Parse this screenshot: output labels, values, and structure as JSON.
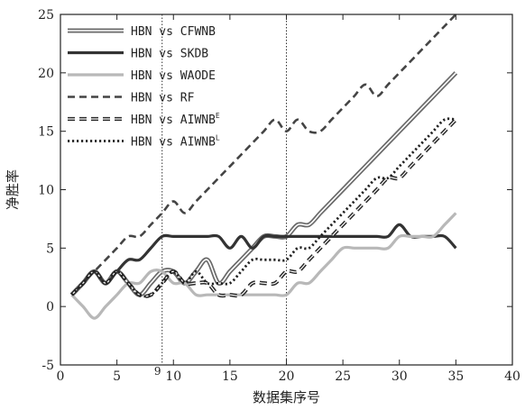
{
  "chart_data": {
    "type": "line",
    "xlabel": "数据集序号",
    "ylabel": "净胜率",
    "xlim": [
      0,
      40
    ],
    "ylim": [
      -5,
      25
    ],
    "xticks": [
      0,
      5,
      10,
      15,
      20,
      25,
      30,
      35,
      40
    ],
    "yticks": [
      -5,
      0,
      5,
      10,
      15,
      20,
      25
    ],
    "grid": false,
    "legend_position": "top-left",
    "vlines": [
      {
        "x": 9,
        "label": "9"
      },
      {
        "x": 20,
        "label": ""
      }
    ],
    "series": [
      {
        "name": "HBN vs CFWNB",
        "style": "double-solid",
        "color": "#888888",
        "x": [
          1,
          2,
          3,
          4,
          5,
          6,
          7,
          8,
          9,
          10,
          11,
          12,
          13,
          14,
          15,
          16,
          17,
          18,
          19,
          20,
          21,
          22,
          23,
          24,
          25,
          26,
          27,
          28,
          29,
          30,
          31,
          32,
          33,
          34,
          35
        ],
        "y": [
          1,
          2,
          3,
          2,
          3,
          2,
          1,
          2,
          3,
          3,
          2,
          3,
          4,
          2,
          3,
          4,
          5,
          6,
          6,
          6,
          7,
          7,
          8,
          9,
          10,
          11,
          12,
          13,
          14,
          15,
          16,
          17,
          18,
          19,
          20
        ]
      },
      {
        "name": "HBN vs SKDB",
        "style": "solid",
        "color": "#333333",
        "x": [
          1,
          2,
          3,
          4,
          5,
          6,
          7,
          8,
          9,
          10,
          11,
          12,
          13,
          14,
          15,
          16,
          17,
          18,
          19,
          20,
          21,
          22,
          23,
          24,
          25,
          26,
          27,
          28,
          29,
          30,
          31,
          32,
          33,
          34,
          35
        ],
        "y": [
          1,
          2,
          3,
          2,
          3,
          4,
          4,
          5,
          6,
          6,
          6,
          6,
          6,
          6,
          5,
          6,
          5,
          6,
          6,
          6,
          6,
          6,
          6,
          6,
          6,
          6,
          6,
          6,
          6,
          7,
          6,
          6,
          6,
          6,
          5
        ]
      },
      {
        "name": "HBN vs WAODE",
        "style": "solid",
        "color": "#b8b8b8",
        "x": [
          1,
          2,
          3,
          4,
          5,
          6,
          7,
          8,
          9,
          10,
          11,
          12,
          13,
          14,
          15,
          16,
          17,
          18,
          19,
          20,
          21,
          22,
          23,
          24,
          25,
          26,
          27,
          28,
          29,
          30,
          31,
          32,
          33,
          34,
          35
        ],
        "y": [
          1,
          0,
          -1,
          0,
          1,
          2,
          2,
          3,
          3,
          2,
          2,
          1,
          1,
          1,
          1,
          1,
          1,
          1,
          1,
          1,
          2,
          2,
          3,
          4,
          5,
          5,
          5,
          5,
          5,
          6,
          6,
          6,
          6,
          7,
          8
        ]
      },
      {
        "name": "HBN vs RF",
        "style": "dashed",
        "color": "#444444",
        "x": [
          1,
          2,
          3,
          4,
          5,
          6,
          7,
          8,
          9,
          10,
          11,
          12,
          13,
          14,
          15,
          16,
          17,
          18,
          19,
          20,
          21,
          22,
          23,
          24,
          25,
          26,
          27,
          28,
          29,
          30,
          31,
          32,
          33,
          34,
          35
        ],
        "y": [
          1,
          2,
          3,
          4,
          5,
          6,
          6,
          7,
          8,
          9,
          8,
          9,
          10,
          11,
          12,
          13,
          14,
          15,
          16,
          15,
          16,
          15,
          15,
          16,
          17,
          18,
          19,
          18,
          19,
          20,
          21,
          22,
          23,
          24,
          25
        ]
      },
      {
        "name": "HBN vs AIWNB",
        "name_sup": "E",
        "style": "double-dashed",
        "color": "#444444",
        "x": [
          1,
          2,
          3,
          4,
          5,
          6,
          7,
          8,
          9,
          10,
          11,
          12,
          13,
          14,
          15,
          16,
          17,
          18,
          19,
          20,
          21,
          22,
          23,
          24,
          25,
          26,
          27,
          28,
          29,
          30,
          31,
          32,
          33,
          34,
          35
        ],
        "y": [
          1,
          2,
          3,
          2,
          3,
          2,
          1,
          1,
          2,
          3,
          2,
          2,
          2,
          1,
          1,
          1,
          2,
          2,
          2,
          3,
          3,
          4,
          5,
          6,
          7,
          8,
          9,
          10,
          11,
          11,
          12,
          13,
          14,
          15,
          16
        ]
      },
      {
        "name": "HBN vs AIWNB",
        "name_sup": "L",
        "style": "dotted",
        "color": "#222222",
        "x": [
          1,
          2,
          3,
          4,
          5,
          6,
          7,
          8,
          9,
          10,
          11,
          12,
          13,
          14,
          15,
          16,
          17,
          18,
          19,
          20,
          21,
          22,
          23,
          24,
          25,
          26,
          27,
          28,
          29,
          30,
          31,
          32,
          33,
          34,
          35
        ],
        "y": [
          1,
          2,
          3,
          2,
          3,
          2,
          1,
          1,
          2,
          3,
          2,
          3,
          2,
          2,
          2,
          3,
          4,
          4,
          4,
          4,
          5,
          5,
          6,
          7,
          8,
          9,
          10,
          11,
          11,
          12,
          13,
          14,
          15,
          16,
          16
        ]
      }
    ]
  }
}
